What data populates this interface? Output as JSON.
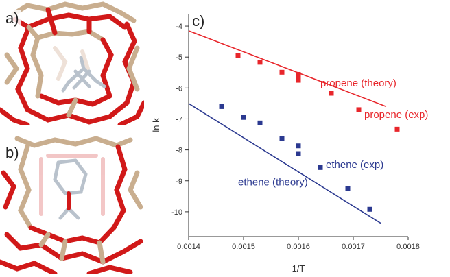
{
  "panels": {
    "a_label": "a)",
    "b_label": "b)",
    "c_label": "c)"
  },
  "colors": {
    "propene": "#e8262b",
    "ethene": "#2b3990",
    "framework_o": "#d11919",
    "framework_t": "#c9ae8f",
    "molecule": "#b9c2cc"
  },
  "chart_data": {
    "type": "scatter",
    "xlabel": "1/T",
    "ylabel": "ln k",
    "xlim": [
      0.0014,
      0.0018
    ],
    "ylim": [
      -10.8,
      -3.6
    ],
    "xticks": [
      "0.0014",
      "0.0015",
      "0.0016",
      "0.0017",
      "0.0018"
    ],
    "yticks": [
      "-4",
      "-5",
      "-6",
      "-7",
      "-8",
      "-9",
      "-10"
    ],
    "grid": false,
    "series": [
      {
        "name": "propene (exp)",
        "kind": "points",
        "color": "#e8262b",
        "x": [
          0.00149,
          0.00153,
          0.00157,
          0.0016,
          0.0016,
          0.0016,
          0.00166,
          0.00171,
          0.00178
        ],
        "y": [
          -4.95,
          -5.17,
          -5.49,
          -5.56,
          -5.65,
          -5.75,
          -6.17,
          -6.7,
          -7.33
        ]
      },
      {
        "name": "propene (theory)",
        "kind": "line",
        "color": "#e8262b",
        "x": [
          0.0014,
          0.00176
        ],
        "y": [
          -4.15,
          -6.6
        ]
      },
      {
        "name": "ethene (exp)",
        "kind": "points",
        "color": "#2b3990",
        "x": [
          0.00146,
          0.0015,
          0.00153,
          0.00157,
          0.0016,
          0.0016,
          0.00164,
          0.00169,
          0.00173
        ],
        "y": [
          -6.6,
          -6.95,
          -7.13,
          -7.63,
          -7.87,
          -8.12,
          -8.57,
          -9.24,
          -9.92
        ]
      },
      {
        "name": "ethene (theory)",
        "kind": "line",
        "color": "#2b3990",
        "x": [
          0.0014,
          0.00175
        ],
        "y": [
          -6.5,
          -10.37
        ]
      }
    ],
    "annotations": [
      {
        "text": "propene (theory)",
        "color": "#e8262b",
        "x": 0.00164,
        "y": -5.95
      },
      {
        "text": "propene (exp)",
        "color": "#e8262b",
        "x": 0.00172,
        "y": -6.97
      },
      {
        "text": "ethene (exp)",
        "color": "#2b3990",
        "x": 0.00165,
        "y": -8.58
      },
      {
        "text": "ethene (theory)",
        "color": "#2b3990",
        "x": 0.00149,
        "y": -9.15
      }
    ]
  }
}
